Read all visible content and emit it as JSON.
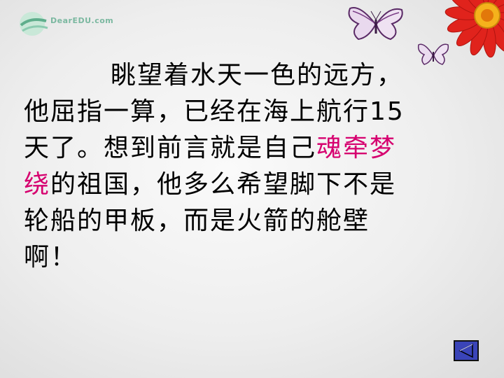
{
  "logo": {
    "text": "DearEDU.com"
  },
  "content": {
    "line1": "眺望着水天一色的远方，",
    "line2": "他屈指一算，已经在海上航行15",
    "line3_a": "天了。想到前言就是自己",
    "line3_hl": "魂牵梦",
    "line4_hl": "绕",
    "line4_b": "的祖国，他多么希望脚下不是",
    "line5": "轮船的甲板，而是火箭的舱壁",
    "line6": "啊！"
  },
  "colors": {
    "highlight": "#d6006f",
    "nav_button": "#3a44b8"
  },
  "icons": {
    "nav": "back-triangle-icon"
  }
}
